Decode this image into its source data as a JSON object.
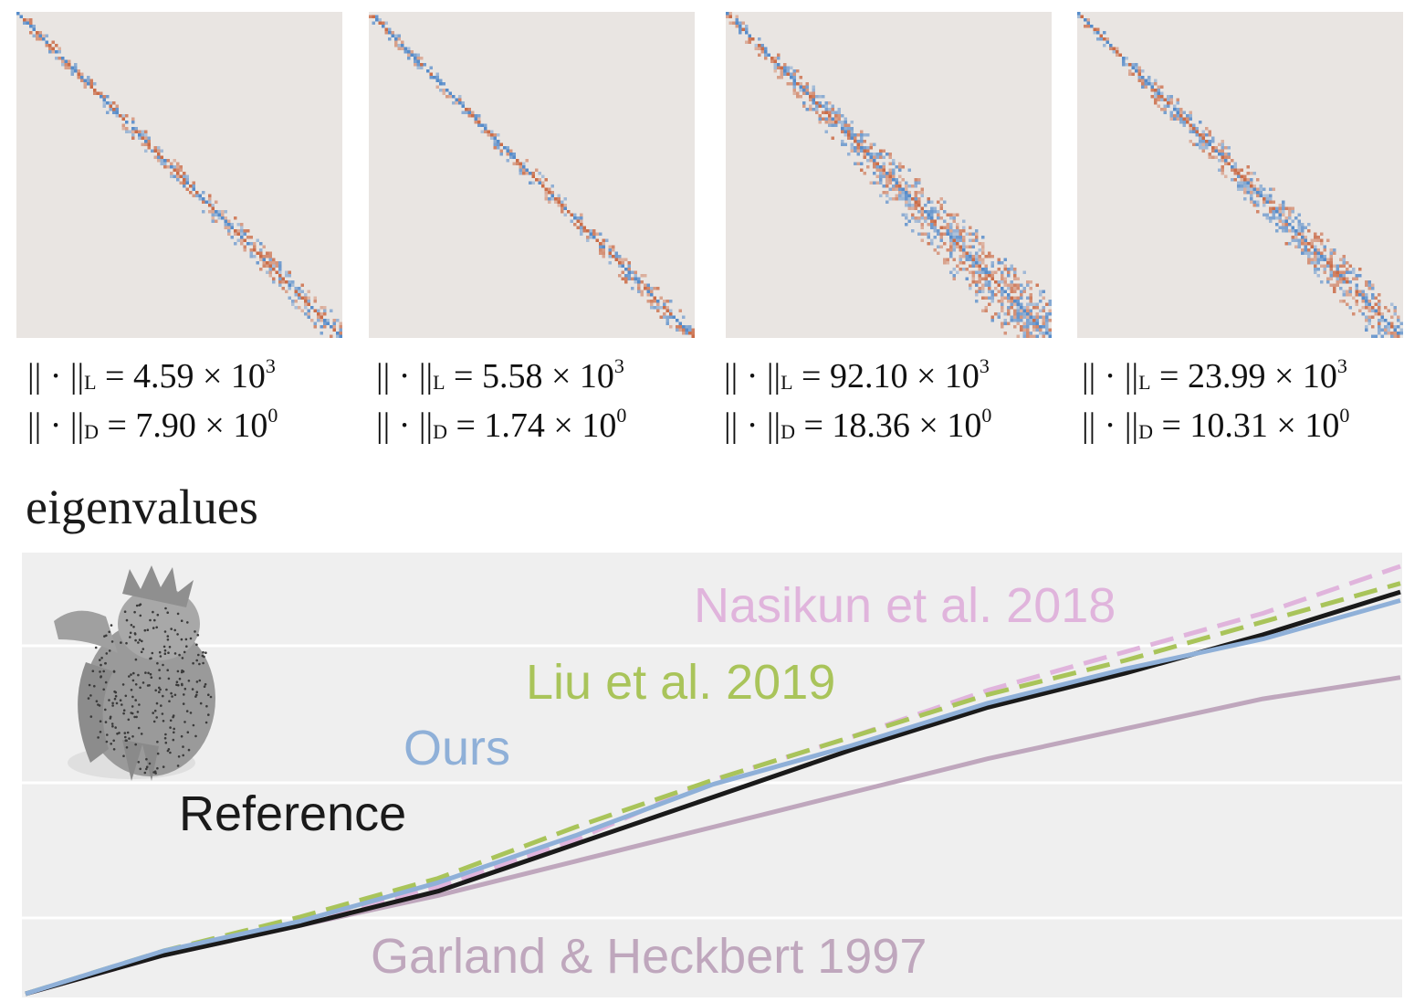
{
  "panels": [
    {
      "norm_L": "|| · ||L = 4.59 × 10³",
      "L_sym": "|| · ||",
      "L_sub": "L",
      "L_mant": " = 4.59 × 10",
      "L_exp": "3",
      "D_sym": "|| · ||",
      "D_sub": "D",
      "D_mant": " = 7.90 × 10",
      "D_exp": "0",
      "spread": 0.25
    },
    {
      "L_sym": "|| · ||",
      "L_sub": "L",
      "L_mant": " = 5.58 × 10",
      "L_exp": "3",
      "D_sym": "|| · ||",
      "D_sub": "D",
      "D_mant": " = 1.74 × 10",
      "D_exp": "0",
      "spread": 0.18
    },
    {
      "L_sym": "|| · ||",
      "L_sub": "L",
      "L_mant": " = 92.10 × 10",
      "L_exp": "3",
      "D_sym": "|| · ||",
      "D_sub": "D",
      "D_mant": " = 18.36 × 10",
      "D_exp": "0",
      "spread": 0.9
    },
    {
      "L_sym": "|| · ||",
      "L_sub": "L",
      "L_mant": " = 23.99 × 10",
      "L_exp": "3",
      "D_sym": "|| · ||",
      "D_sub": "D",
      "D_mant": " = 10.31 × 10",
      "D_exp": "0",
      "spread": 0.55
    }
  ],
  "chart_data": {
    "type": "line",
    "title": "eigenvalues",
    "xlabel": "",
    "ylabel": "",
    "grid": true,
    "xlim": [
      0,
      1
    ],
    "ylim": [
      0,
      1
    ],
    "series": [
      {
        "name": "Reference",
        "color": "#1a1a1a",
        "dash": false,
        "x": [
          0,
          0.1,
          0.2,
          0.3,
          0.4,
          0.5,
          0.6,
          0.7,
          0.8,
          0.9,
          1.0
        ],
        "y": [
          0,
          0.09,
          0.16,
          0.24,
          0.35,
          0.46,
          0.57,
          0.67,
          0.75,
          0.84,
          0.94
        ]
      },
      {
        "name": "Ours",
        "color": "#8fb0d8",
        "dash": false,
        "x": [
          0,
          0.1,
          0.2,
          0.3,
          0.4,
          0.5,
          0.6,
          0.7,
          0.8,
          0.9,
          1.0
        ],
        "y": [
          0,
          0.1,
          0.17,
          0.26,
          0.37,
          0.49,
          0.58,
          0.68,
          0.76,
          0.83,
          0.92
        ]
      },
      {
        "name": "Liu et al. 2019",
        "color": "#a9c45a",
        "dash": true,
        "x": [
          0,
          0.1,
          0.2,
          0.3,
          0.4,
          0.5,
          0.6,
          0.7,
          0.8,
          0.9,
          1.0
        ],
        "y": [
          0,
          0.1,
          0.18,
          0.27,
          0.39,
          0.5,
          0.6,
          0.7,
          0.78,
          0.87,
          0.96
        ]
      },
      {
        "name": "Nasikun et al. 2018",
        "color": "#e0b4dc",
        "dash": true,
        "x": [
          0,
          0.1,
          0.2,
          0.3,
          0.4,
          0.5,
          0.6,
          0.7,
          0.8,
          0.9,
          1.0
        ],
        "y": [
          0,
          0.09,
          0.17,
          0.25,
          0.36,
          0.5,
          0.6,
          0.71,
          0.8,
          0.89,
          1.0
        ]
      },
      {
        "name": "Garland & Heckbert 1997",
        "color": "#bfa7bd",
        "dash": false,
        "x": [
          0,
          0.1,
          0.2,
          0.3,
          0.4,
          0.5,
          0.6,
          0.7,
          0.8,
          0.9,
          1.0
        ],
        "y": [
          0,
          0.09,
          0.16,
          0.23,
          0.31,
          0.39,
          0.47,
          0.55,
          0.62,
          0.69,
          0.74
        ]
      }
    ]
  }
}
